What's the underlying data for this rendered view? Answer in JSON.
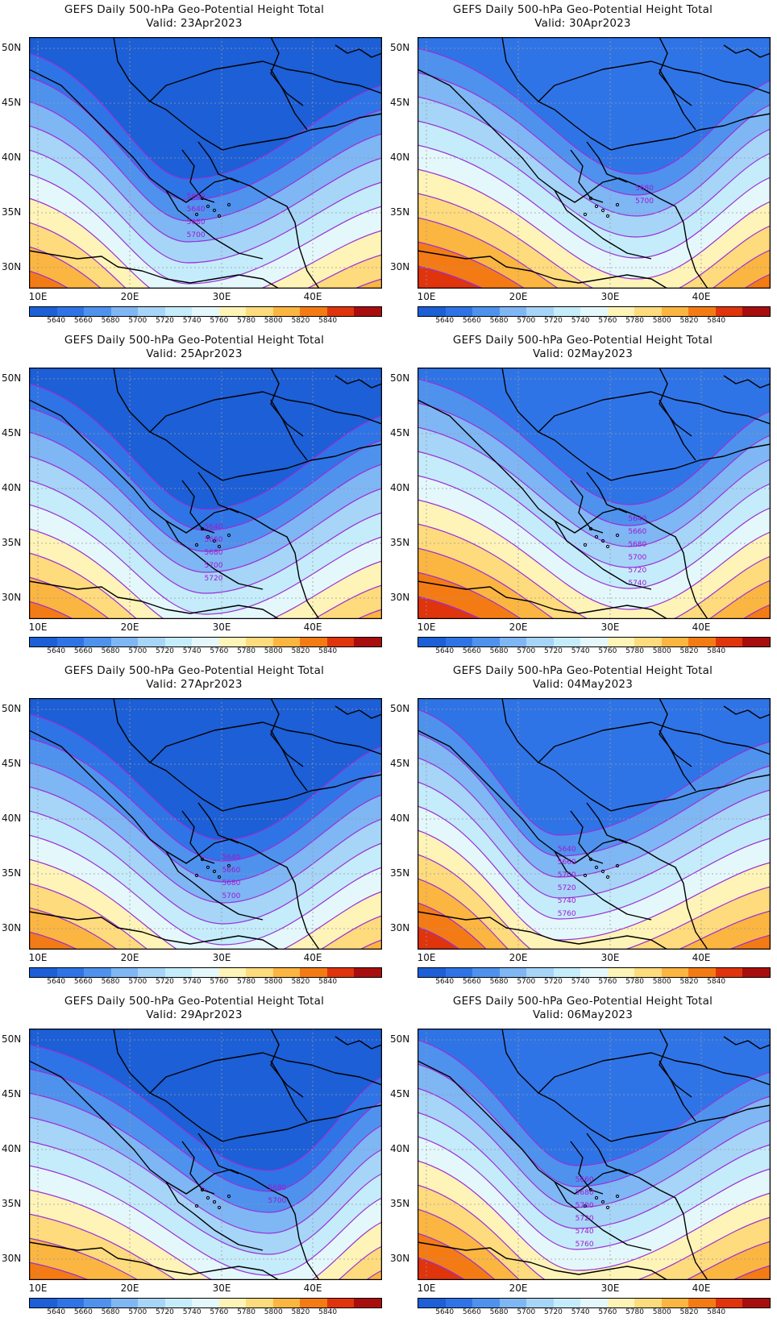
{
  "colorbar": {
    "colors": [
      "#1c5fd6",
      "#2f74e6",
      "#4e92ee",
      "#7fb6f4",
      "#a6d5f8",
      "#c5ecfa",
      "#e4f8fb",
      "#fff4b8",
      "#fedb7d",
      "#fbb541",
      "#f47b14",
      "#e0340d",
      "#a80e0e"
    ],
    "labels": [
      "5640",
      "5660",
      "5680",
      "5700",
      "5720",
      "5740",
      "5760",
      "5780",
      "5800",
      "5820",
      "5840"
    ]
  },
  "axes": {
    "lat_labels": [
      "50N",
      "45N",
      "40N",
      "35N",
      "30N"
    ],
    "lon_labels": [
      "10E",
      "20E",
      "30E",
      "40E"
    ]
  },
  "contour_color": "#9b2fd8",
  "panels": [
    {
      "title": "GEFS Daily 500-hPa Geo-Potential Height Total",
      "valid": "Valid: 23Apr2023",
      "contour_labels": [
        "5660",
        "5640",
        "5680",
        "5700"
      ],
      "bands": [
        0,
        4,
        5,
        7,
        9
      ],
      "trough": 0.45
    },
    {
      "title": "GEFS Daily 500-hPa Geo-Potential Height Total",
      "valid": "Valid: 30Apr2023",
      "contour_labels": [
        "5680",
        "5700"
      ],
      "bands": [
        1,
        3,
        5,
        8,
        11
      ],
      "trough": 0.62
    },
    {
      "title": "GEFS Daily 500-hPa Geo-Potential Height Total",
      "valid": "Valid: 25Apr2023",
      "contour_labels": [
        "5640",
        "5660",
        "5680",
        "5700",
        "5720"
      ],
      "bands": [
        0,
        3,
        5,
        7,
        9
      ],
      "trough": 0.5
    },
    {
      "title": "GEFS Daily 500-hPa Geo-Potential Height Total",
      "valid": "Valid: 02May2023",
      "contour_labels": [
        "5640",
        "5660",
        "5680",
        "5700",
        "5720",
        "5740"
      ],
      "bands": [
        1,
        3,
        5,
        7,
        9
      ],
      "trough": 0.6
    },
    {
      "title": "GEFS Daily 500-hPa Geo-Potential Height Total",
      "valid": "Valid: 27Apr2023",
      "contour_labels": [
        "5640",
        "5660",
        "5680",
        "5700"
      ],
      "bands": [
        0,
        3,
        6,
        9,
        11
      ],
      "trough": 0.55
    },
    {
      "title": "GEFS Daily 500-hPa Geo-Potential Height Total",
      "valid": "Valid: 04May2023",
      "contour_labels": [
        "5640",
        "5660",
        "5700",
        "5720",
        "5740",
        "5760"
      ],
      "bands": [
        1,
        3,
        5,
        7,
        9
      ],
      "trough": 0.4
    },
    {
      "title": "GEFS Daily 500-hPa Geo-Potential Height Total",
      "valid": "Valid: 29Apr2023",
      "contour_labels": [
        "5680",
        "5700"
      ],
      "bands": [
        0,
        4,
        6,
        9,
        12
      ],
      "trough": 0.68
    },
    {
      "title": "GEFS Daily 500-hPa Geo-Potential Height Total",
      "valid": "Valid: 06May2023",
      "contour_labels": [
        "5660",
        "5680",
        "5700",
        "5720",
        "5740",
        "5760"
      ],
      "bands": [
        1,
        3,
        5,
        7,
        9
      ],
      "trough": 0.45
    }
  ]
}
